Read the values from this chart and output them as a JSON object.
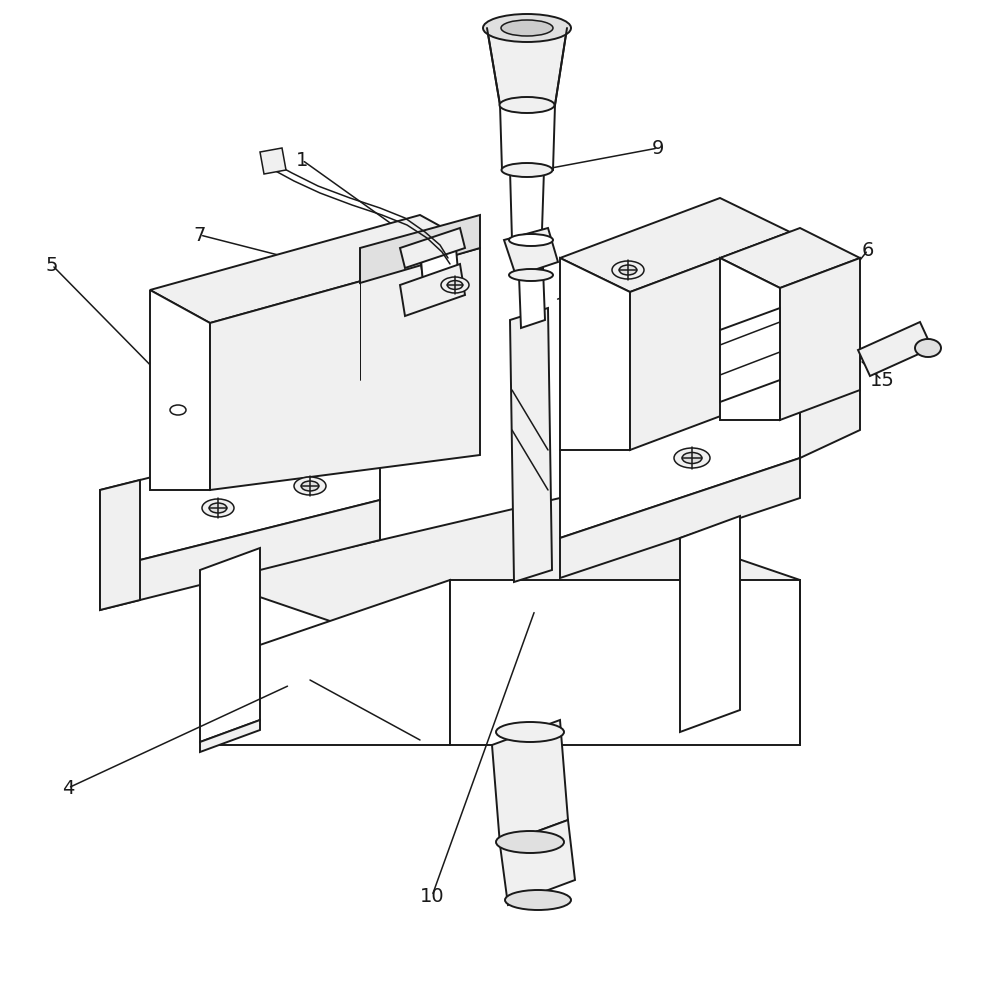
{
  "bg_color": "#ffffff",
  "lc": "#1a1a1a",
  "lw": 1.4,
  "lw_thin": 1.1,
  "figsize": [
    10.0,
    9.82
  ],
  "dpi": 100,
  "face_light": "#f0f0f0",
  "face_white": "#ffffff",
  "face_mid": "#e0e0e0",
  "face_dark": "#cccccc"
}
